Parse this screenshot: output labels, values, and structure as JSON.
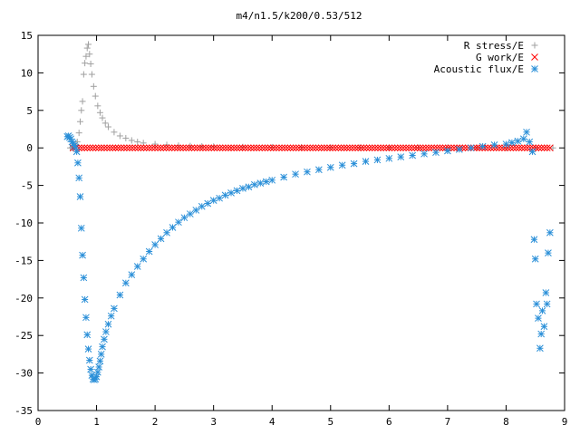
{
  "chart_data": {
    "type": "scatter",
    "title": "m4/n1.5/k200/0.53/512",
    "xlabel": "",
    "ylabel": "",
    "xlim": [
      0,
      9
    ],
    "ylim": [
      -35,
      15
    ],
    "xticks": [
      0,
      1,
      2,
      3,
      4,
      5,
      6,
      7,
      8,
      9
    ],
    "yticks": [
      -35,
      -30,
      -25,
      -20,
      -15,
      -10,
      -5,
      0,
      5,
      10,
      15
    ],
    "grid": false,
    "legend_position": "top-right",
    "series": [
      {
        "name": "R stress/E",
        "marker": "plus",
        "color": "#a0a0a0",
        "x": [
          0.55,
          0.58,
          0.61,
          0.64,
          0.67,
          0.7,
          0.72,
          0.74,
          0.76,
          0.78,
          0.8,
          0.82,
          0.84,
          0.86,
          0.88,
          0.9,
          0.92,
          0.95,
          0.98,
          1.02,
          1.06,
          1.1,
          1.15,
          1.2,
          1.3,
          1.4,
          1.5,
          1.6,
          1.7,
          1.8,
          2.0,
          2.2,
          2.4,
          2.6,
          2.8,
          3.0,
          3.5,
          4.0,
          4.5,
          5.0,
          5.5,
          6.0,
          6.5,
          7.0,
          7.5,
          8.0,
          8.5,
          8.8
        ],
        "y": [
          0.0,
          0.05,
          0.1,
          0.3,
          0.8,
          2.0,
          3.5,
          5.0,
          6.2,
          9.8,
          11.3,
          12.2,
          13.3,
          13.8,
          12.5,
          11.2,
          9.8,
          8.2,
          6.9,
          5.6,
          4.7,
          4.0,
          3.3,
          2.8,
          2.1,
          1.6,
          1.3,
          1.0,
          0.8,
          0.65,
          0.5,
          0.4,
          0.3,
          0.25,
          0.2,
          0.18,
          0.12,
          0.1,
          0.07,
          0.05,
          0.04,
          0.03,
          0.02,
          0.02,
          0.01,
          0.01,
          0.0,
          0.0
        ]
      },
      {
        "name": "G work/E",
        "marker": "cross",
        "color": "#ff0000",
        "x_range": [
          0.6,
          8.75
        ],
        "count": 170,
        "y_value": 0.0
      },
      {
        "name": "Acoustic flux/E",
        "marker": "star",
        "color": "#2a8fd8",
        "x": [
          0.5,
          0.52,
          0.54,
          0.56,
          0.58,
          0.6,
          0.62,
          0.64,
          0.66,
          0.68,
          0.7,
          0.72,
          0.74,
          0.76,
          0.78,
          0.8,
          0.82,
          0.84,
          0.86,
          0.88,
          0.9,
          0.92,
          0.94,
          0.96,
          0.98,
          1.0,
          1.02,
          1.04,
          1.06,
          1.08,
          1.1,
          1.13,
          1.16,
          1.2,
          1.25,
          1.3,
          1.4,
          1.5,
          1.6,
          1.7,
          1.8,
          1.9,
          2.0,
          2.1,
          2.2,
          2.3,
          2.4,
          2.5,
          2.6,
          2.7,
          2.8,
          2.9,
          3.0,
          3.1,
          3.2,
          3.3,
          3.4,
          3.5,
          3.6,
          3.7,
          3.8,
          3.9,
          4.0,
          4.2,
          4.4,
          4.6,
          4.8,
          5.0,
          5.2,
          5.4,
          5.6,
          5.8,
          6.0,
          6.2,
          6.4,
          6.6,
          6.8,
          7.0,
          7.2,
          7.4,
          7.6,
          7.8,
          8.0,
          8.1,
          8.2,
          8.3,
          8.35,
          8.4,
          8.45,
          8.48,
          8.5,
          8.52,
          8.55,
          8.58,
          8.6,
          8.62,
          8.65,
          8.68,
          8.7,
          8.72,
          8.75
        ],
        "y": [
          1.5,
          1.6,
          1.4,
          1.2,
          0.8,
          0.6,
          0.3,
          0.1,
          -0.5,
          -2.0,
          -4.0,
          -6.5,
          -10.7,
          -14.3,
          -17.3,
          -20.2,
          -22.6,
          -24.9,
          -26.8,
          -28.3,
          -29.5,
          -30.3,
          -30.8,
          -30.9,
          -30.8,
          -30.5,
          -29.9,
          -29.2,
          -28.4,
          -27.5,
          -26.5,
          -25.5,
          -24.5,
          -23.5,
          -22.4,
          -21.4,
          -19.6,
          -18.0,
          -16.9,
          -15.8,
          -14.8,
          -13.8,
          -12.9,
          -12.1,
          -11.3,
          -10.6,
          -9.9,
          -9.3,
          -8.8,
          -8.3,
          -7.8,
          -7.4,
          -7.0,
          -6.7,
          -6.3,
          -6.0,
          -5.7,
          -5.4,
          -5.2,
          -4.9,
          -4.7,
          -4.5,
          -4.3,
          -3.9,
          -3.5,
          -3.2,
          -2.9,
          -2.6,
          -2.3,
          -2.1,
          -1.8,
          -1.6,
          -1.4,
          -1.2,
          -1.0,
          -0.8,
          -0.6,
          -0.4,
          -0.2,
          0.0,
          0.2,
          0.4,
          0.5,
          0.7,
          0.9,
          1.2,
          2.1,
          0.8,
          -0.5,
          -12.2,
          -14.8,
          -20.8,
          -22.7,
          -26.7,
          -24.8,
          -21.7,
          -23.8,
          -19.3,
          -20.8,
          -14.0,
          -11.3
        ]
      }
    ]
  }
}
